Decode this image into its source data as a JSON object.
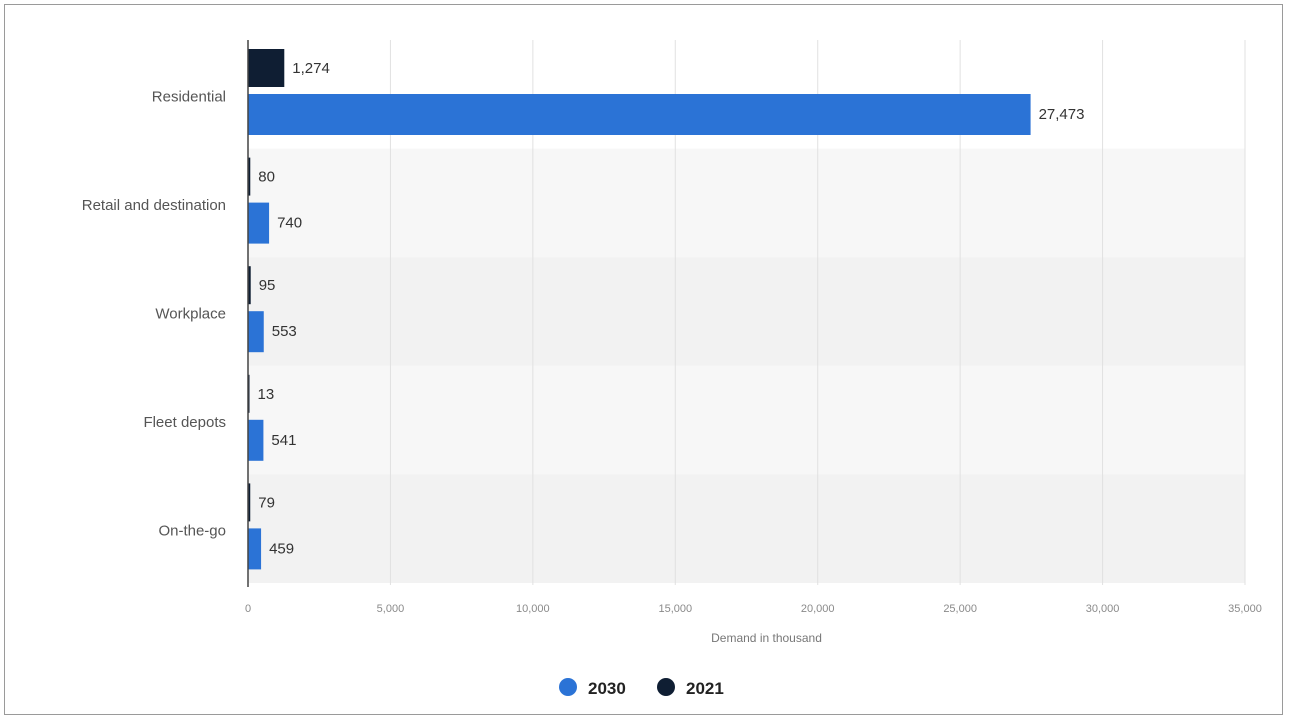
{
  "chart_data": {
    "type": "bar",
    "orientation": "horizontal",
    "categories": [
      "Residential",
      "Retail and destination",
      "Workplace",
      "Fleet depots",
      "On-the-go"
    ],
    "series": [
      {
        "name": "2021",
        "values": [
          1274,
          80,
          95,
          13,
          79
        ],
        "labels": [
          "1,274",
          "80",
          "95",
          "13",
          "79"
        ]
      },
      {
        "name": "2030",
        "values": [
          27473,
          740,
          553,
          541,
          459
        ],
        "labels": [
          "27,473",
          "740",
          "553",
          "541",
          "459"
        ]
      }
    ],
    "xlim": [
      0,
      35000
    ],
    "ticks": [
      0,
      5000,
      10000,
      15000,
      20000,
      25000,
      30000,
      35000
    ],
    "tick_labels": [
      "0",
      "5,000",
      "10,000",
      "15,000",
      "20,000",
      "25,000",
      "30,000",
      "35,000"
    ],
    "xlabel": "Demand in thousand",
    "grid": true,
    "legend_position": "bottom-center",
    "legend": [
      {
        "name": "2030",
        "color": "#2b73d6"
      },
      {
        "name": "2021",
        "color": "#0f1e33"
      }
    ],
    "colors": {
      "2030": "#2b73d6",
      "2021": "#0f1e33"
    }
  }
}
